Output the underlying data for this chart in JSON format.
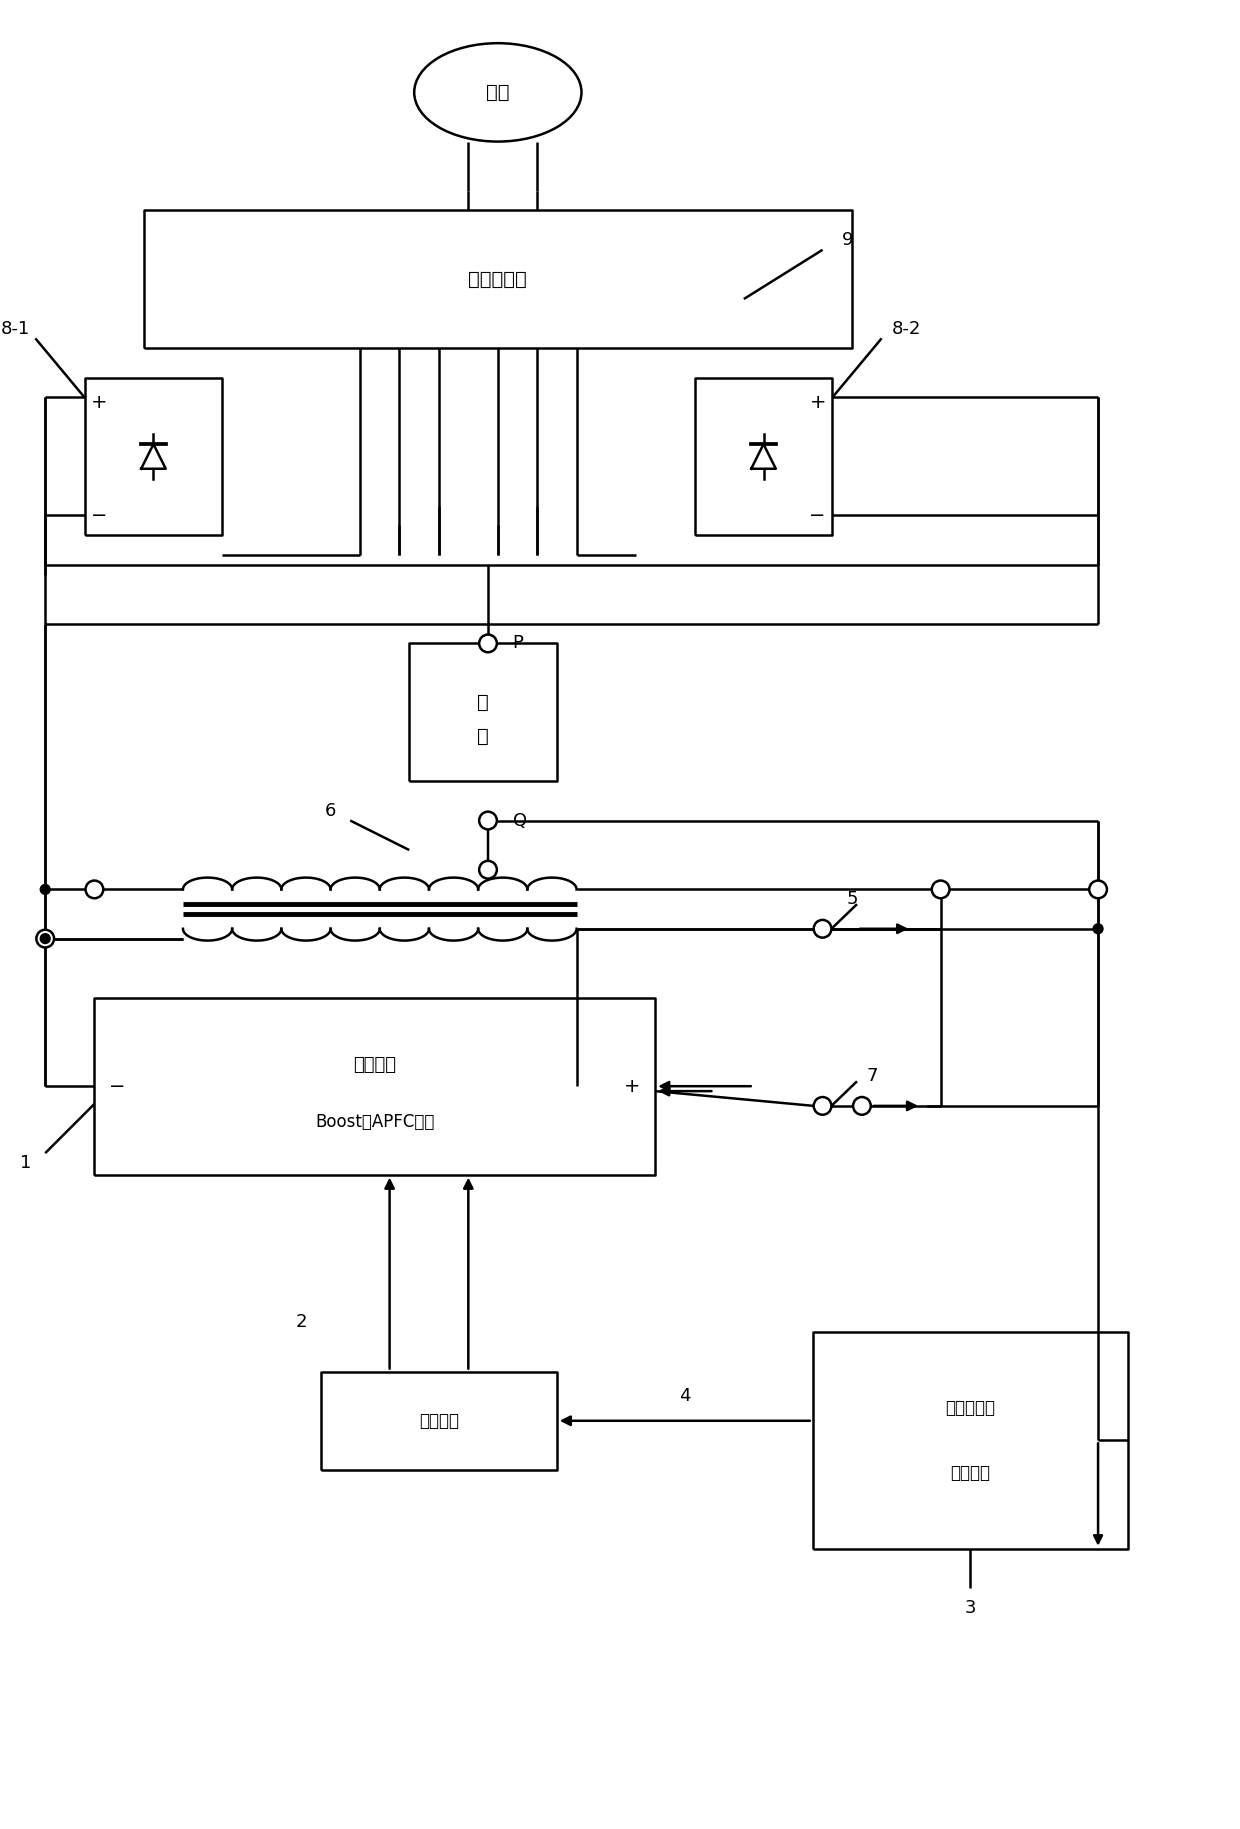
{
  "bg": "#ffffff",
  "lc": "#000000",
  "lw": 1.8,
  "fw": 12.4,
  "fh": 18.29,
  "labels": {
    "grid": "电网",
    "transformer": "移相变压器",
    "r1": "8-1",
    "r2": "8-2",
    "load1": "负",
    "load2": "载",
    "apfc1": "交错并联",
    "apfc2": "Boost型APFC电路",
    "drive": "驱动电路",
    "signal1": "信号处理及",
    "signal2": "控制电路",
    "num_1": "1",
    "num_2": "2",
    "num_3": "3",
    "num_4": "4",
    "num_5": "5",
    "num_6": "6",
    "num_7": "7",
    "num_9": "9",
    "P": "P",
    "Q": "Q",
    "plus": "+",
    "minus": "−"
  }
}
